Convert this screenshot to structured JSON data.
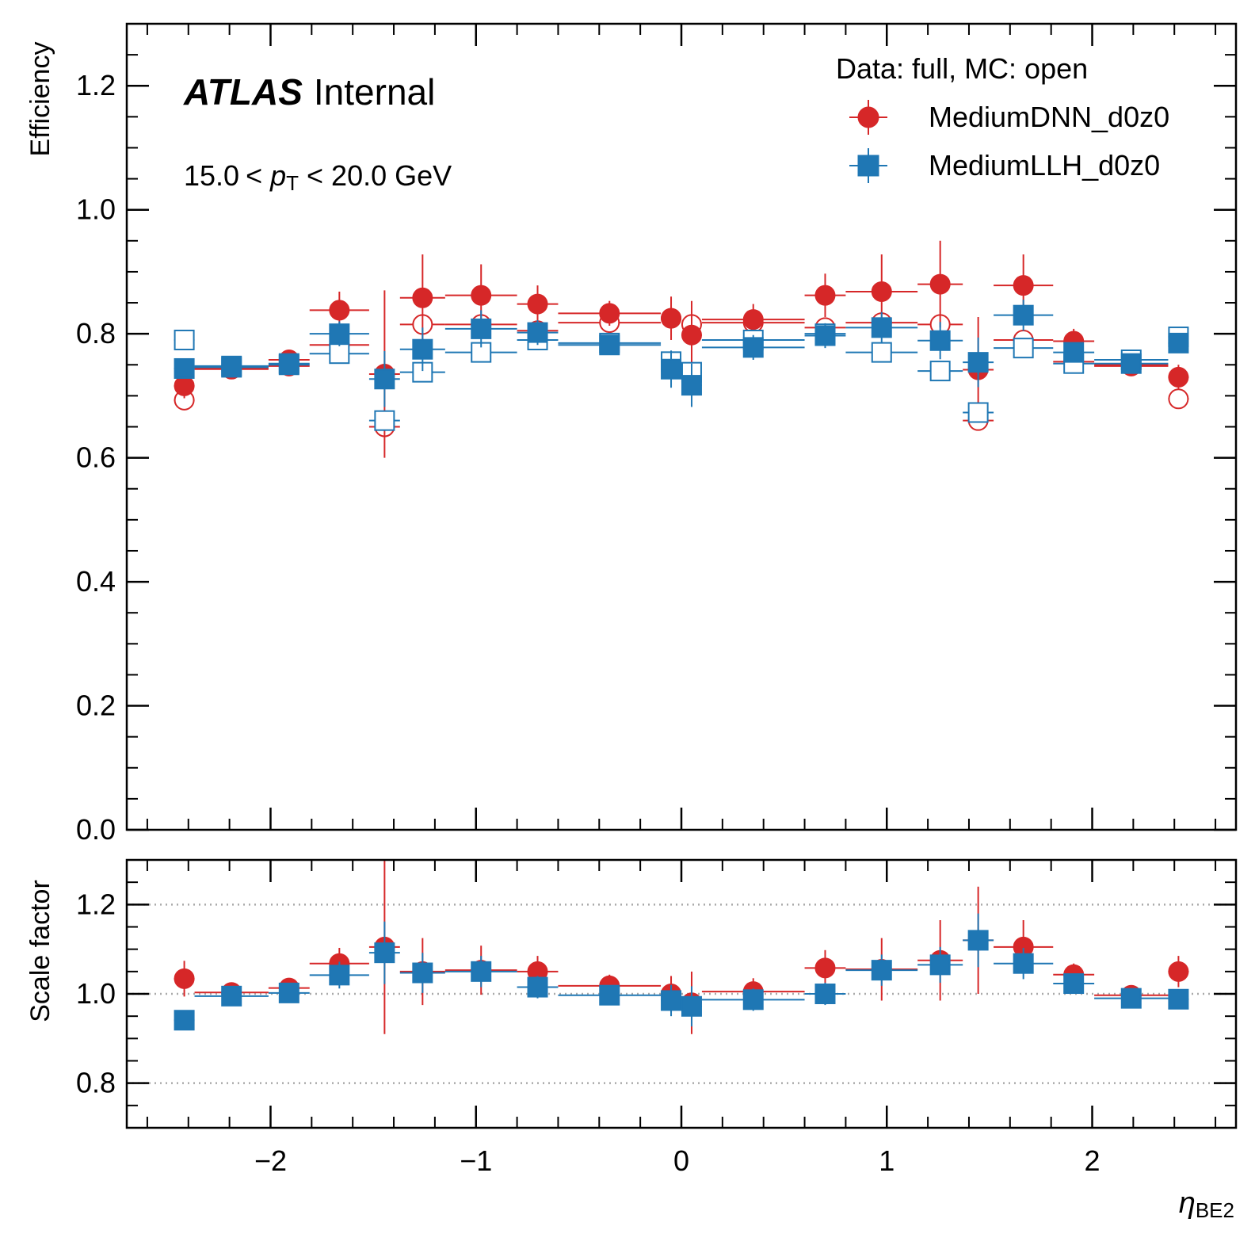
{
  "chart_data": {
    "type": "scatter",
    "experiment_label": "ATLAS",
    "experiment_status": "Internal",
    "kinematics": {
      "low": "15.0",
      "mid": "< ",
      "var": "p",
      "sub": "T",
      "high": " < 20.0 GeV"
    },
    "legend_title": "Data: full, MC: open",
    "xlabel": "η",
    "xlabel_sub": "BE2",
    "xlim": [
      -2.7,
      2.7
    ],
    "x_ticks": [
      {
        "v": -2,
        "label": "−2"
      },
      {
        "v": -1,
        "label": "−1"
      },
      {
        "v": 0,
        "label": "0"
      },
      {
        "v": 1,
        "label": "1"
      },
      {
        "v": 2,
        "label": "2"
      }
    ],
    "bins": [
      {
        "lo": -2.47,
        "hi": -2.37
      },
      {
        "lo": -2.37,
        "hi": -2.01
      },
      {
        "lo": -2.01,
        "hi": -1.81
      },
      {
        "lo": -1.81,
        "hi": -1.52
      },
      {
        "lo": -1.52,
        "hi": -1.37
      },
      {
        "lo": -1.37,
        "hi": -1.15
      },
      {
        "lo": -1.15,
        "hi": -0.8
      },
      {
        "lo": -0.8,
        "hi": -0.6
      },
      {
        "lo": -0.6,
        "hi": -0.1
      },
      {
        "lo": -0.1,
        "hi": 0.0
      },
      {
        "lo": 0.0,
        "hi": 0.1
      },
      {
        "lo": 0.1,
        "hi": 0.6
      },
      {
        "lo": 0.6,
        "hi": 0.8
      },
      {
        "lo": 0.8,
        "hi": 1.15
      },
      {
        "lo": 1.15,
        "hi": 1.37
      },
      {
        "lo": 1.37,
        "hi": 1.52
      },
      {
        "lo": 1.52,
        "hi": 1.81
      },
      {
        "lo": 1.81,
        "hi": 2.01
      },
      {
        "lo": 2.01,
        "hi": 2.37
      },
      {
        "lo": 2.37,
        "hi": 2.47
      }
    ],
    "x_centers": [
      -2.42,
      -2.19,
      -1.91,
      -1.665,
      -1.445,
      -1.26,
      -0.975,
      -0.7,
      -0.35,
      -0.05,
      0.05,
      0.35,
      0.7,
      0.975,
      1.26,
      1.445,
      1.665,
      1.91,
      2.19,
      2.42
    ],
    "panels": [
      {
        "id": "efficiency",
        "ylabel": "Efficiency",
        "ylim": [
          0.0,
          1.3
        ],
        "y_ticks": [
          {
            "v": 0.0,
            "label": "0.0"
          },
          {
            "v": 0.2,
            "label": "0.2"
          },
          {
            "v": 0.4,
            "label": "0.4"
          },
          {
            "v": 0.6,
            "label": "0.6"
          },
          {
            "v": 0.8,
            "label": "0.8"
          },
          {
            "v": 1.0,
            "label": "1.0"
          },
          {
            "v": 1.2,
            "label": "1.2"
          }
        ],
        "y_minor_step": 0.05,
        "grid_lines": []
      },
      {
        "id": "scale-factor",
        "ylabel": "Scale factor",
        "ylim": [
          0.7,
          1.3
        ],
        "y_ticks": [
          {
            "v": 0.8,
            "label": "0.8"
          },
          {
            "v": 1.0,
            "label": "1.0"
          },
          {
            "v": 1.2,
            "label": "1.2"
          }
        ],
        "y_minor_step": 0.05,
        "grid_lines": [
          0.8,
          1.0,
          1.2
        ]
      }
    ],
    "series": [
      {
        "name": "MediumDNN_d0z0",
        "marker": "circle",
        "color": "#d62728",
        "eff_data": [
          0.716,
          0.745,
          0.758,
          0.838,
          0.735,
          0.858,
          0.862,
          0.848,
          0.833,
          0.825,
          0.798,
          0.823,
          0.862,
          0.868,
          0.88,
          0.742,
          0.878,
          0.788,
          0.748,
          0.73
        ],
        "eff_data_err": [
          0.02,
          0.01,
          0.015,
          0.03,
          0.135,
          0.07,
          0.05,
          0.03,
          0.02,
          0.035,
          0.055,
          0.025,
          0.035,
          0.06,
          0.07,
          0.085,
          0.05,
          0.02,
          0.015,
          0.02
        ],
        "eff_mc": [
          0.693,
          0.743,
          0.748,
          0.782,
          0.65,
          0.815,
          0.815,
          0.805,
          0.818,
          0.825,
          0.815,
          0.818,
          0.81,
          0.818,
          0.815,
          0.66,
          0.79,
          0.755,
          0.75,
          0.695
        ],
        "sf": [
          1.034,
          1.003,
          1.013,
          1.068,
          1.105,
          1.05,
          1.053,
          1.05,
          1.018,
          1.0,
          0.98,
          1.005,
          1.058,
          1.055,
          1.075,
          1.12,
          1.105,
          1.043,
          0.997,
          1.05
        ],
        "sf_err": [
          0.04,
          0.01,
          0.02,
          0.035,
          0.195,
          0.075,
          0.055,
          0.035,
          0.025,
          0.04,
          0.07,
          0.03,
          0.04,
          0.07,
          0.09,
          0.12,
          0.06,
          0.025,
          0.015,
          0.035
        ]
      },
      {
        "name": "MediumLLH_d0z0",
        "marker": "square",
        "color": "#1f77b4",
        "eff_data": [
          0.744,
          0.746,
          0.752,
          0.8,
          0.727,
          0.775,
          0.808,
          0.802,
          0.782,
          0.743,
          0.717,
          0.778,
          0.797,
          0.81,
          0.789,
          0.754,
          0.83,
          0.77,
          0.752,
          0.785
        ],
        "eff_data_err": [
          0.015,
          0.01,
          0.015,
          0.02,
          0.045,
          0.035,
          0.03,
          0.02,
          0.015,
          0.03,
          0.035,
          0.02,
          0.02,
          0.025,
          0.03,
          0.04,
          0.025,
          0.015,
          0.01,
          0.015
        ],
        "eff_mc": [
          0.79,
          0.748,
          0.75,
          0.768,
          0.66,
          0.738,
          0.77,
          0.79,
          0.785,
          0.755,
          0.738,
          0.79,
          0.8,
          0.77,
          0.74,
          0.673,
          0.777,
          0.752,
          0.758,
          0.795
        ],
        "sf": [
          0.941,
          0.995,
          1.002,
          1.042,
          1.092,
          1.047,
          1.05,
          1.015,
          0.997,
          0.985,
          0.972,
          0.987,
          1.0,
          1.053,
          1.065,
          1.12,
          1.068,
          1.023,
          0.99,
          0.988
        ],
        "sf_err": [
          0.02,
          0.015,
          0.02,
          0.03,
          0.07,
          0.045,
          0.035,
          0.025,
          0.02,
          0.035,
          0.045,
          0.025,
          0.025,
          0.035,
          0.04,
          0.06,
          0.035,
          0.02,
          0.015,
          0.02
        ]
      }
    ]
  }
}
